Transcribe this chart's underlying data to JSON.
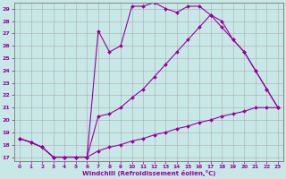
{
  "background_color": "#c8e8e8",
  "line_color": "#990099",
  "grid_color": "#aaaaaa",
  "xlabel": "Windchill (Refroidissement éolien,°C)",
  "xlim": [
    -0.5,
    23.5
  ],
  "ylim": [
    16.7,
    29.5
  ],
  "xticks": [
    0,
    1,
    2,
    3,
    4,
    5,
    6,
    7,
    8,
    9,
    10,
    11,
    12,
    13,
    14,
    15,
    16,
    17,
    18,
    19,
    20,
    21,
    22,
    23
  ],
  "yticks": [
    17,
    18,
    19,
    20,
    21,
    22,
    23,
    24,
    25,
    26,
    27,
    28,
    29
  ],
  "line1_x": [
    0,
    1,
    2,
    3,
    4,
    5,
    6,
    7,
    8,
    9,
    10,
    11,
    12,
    13,
    14,
    15,
    16,
    17,
    18,
    19,
    20,
    21,
    22,
    23
  ],
  "line1_y": [
    18.5,
    18.2,
    17.8,
    17.0,
    17.0,
    17.0,
    17.0,
    27.2,
    25.5,
    26.0,
    29.2,
    29.2,
    29.5,
    29.0,
    28.7,
    29.2,
    29.2,
    28.5,
    27.5,
    26.5,
    25.5,
    24.0,
    22.5,
    21.0
  ],
  "line2_x": [
    0,
    1,
    2,
    3,
    4,
    5,
    6,
    7,
    8,
    9,
    10,
    11,
    12,
    13,
    14,
    15,
    16,
    17,
    18,
    19,
    20,
    21,
    22,
    23
  ],
  "line2_y": [
    18.5,
    18.2,
    17.8,
    17.0,
    17.0,
    17.0,
    17.0,
    20.3,
    20.5,
    21.0,
    21.8,
    22.5,
    23.5,
    24.5,
    25.5,
    26.5,
    27.5,
    28.5,
    28.0,
    26.5,
    25.5,
    24.0,
    22.5,
    21.0
  ],
  "line3_x": [
    0,
    1,
    2,
    3,
    4,
    5,
    6,
    7,
    8,
    9,
    10,
    11,
    12,
    13,
    14,
    15,
    16,
    17,
    18,
    19,
    20,
    21,
    22,
    23
  ],
  "line3_y": [
    18.5,
    18.2,
    17.8,
    17.0,
    17.0,
    17.0,
    17.0,
    17.5,
    17.8,
    18.0,
    18.3,
    18.5,
    18.8,
    19.0,
    19.3,
    19.5,
    19.8,
    20.0,
    20.3,
    20.5,
    20.7,
    21.0,
    21.0,
    21.0
  ]
}
